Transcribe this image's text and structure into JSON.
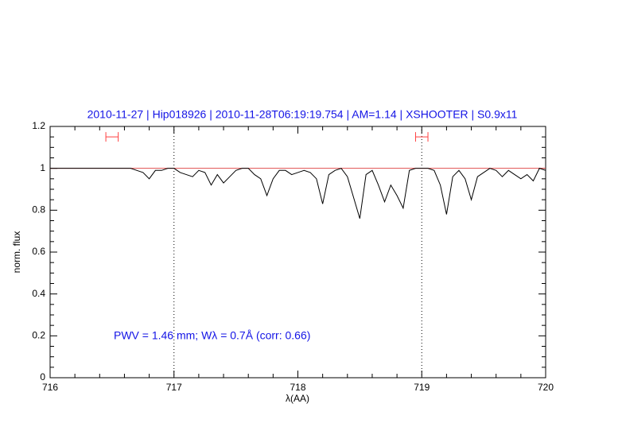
{
  "chart_data": {
    "type": "line",
    "title": "2010-11-27 | Hip018926 | 2010-11-28T06:19:19.754 | AM=1.14 | XSHOOTER | S0.9x11",
    "xlabel": "λ(AA)",
    "ylabel": "norm. flux",
    "annotation": "PWV = 1.46 mm; Wλ = 0.7Å (corr: 0.66)",
    "color": "#000000",
    "x": [
      716.0,
      716.05,
      716.1,
      716.15,
      716.2,
      716.25,
      716.3,
      716.35,
      716.4,
      716.45,
      716.5,
      716.55,
      716.6,
      716.65,
      716.7,
      716.75,
      716.8,
      716.85,
      716.9,
      716.95,
      717.0,
      717.05,
      717.1,
      717.15,
      717.2,
      717.25,
      717.3,
      717.35,
      717.4,
      717.45,
      717.5,
      717.55,
      717.6,
      717.65,
      717.7,
      717.75,
      717.8,
      717.85,
      717.9,
      717.95,
      718.0,
      718.05,
      718.1,
      718.15,
      718.2,
      718.25,
      718.3,
      718.35,
      718.4,
      718.45,
      718.5,
      718.55,
      718.6,
      718.65,
      718.7,
      718.75,
      718.8,
      718.85,
      718.9,
      718.95,
      719.0,
      719.05,
      719.1,
      719.15,
      719.2,
      719.25,
      719.3,
      719.35,
      719.4,
      719.45,
      719.5,
      719.55,
      719.6,
      719.65,
      719.7,
      719.75,
      719.8,
      719.85,
      719.9,
      719.95,
      720.0
    ],
    "values": [
      1.0,
      1.0,
      1.0,
      1.0,
      1.0,
      1.0,
      1.0,
      1.0,
      1.0,
      1.0,
      1.0,
      1.0,
      1.0,
      1.0,
      0.99,
      0.98,
      0.95,
      0.99,
      0.99,
      1.0,
      1.0,
      0.98,
      0.97,
      0.96,
      0.99,
      0.98,
      0.92,
      0.97,
      0.93,
      0.96,
      0.99,
      1.0,
      1.0,
      0.97,
      0.95,
      0.87,
      0.95,
      0.99,
      0.99,
      0.97,
      0.98,
      0.99,
      0.98,
      0.95,
      0.83,
      0.97,
      0.99,
      1.0,
      0.96,
      0.86,
      0.76,
      0.97,
      0.99,
      0.92,
      0.84,
      0.92,
      0.87,
      0.81,
      0.99,
      1.0,
      1.0,
      1.0,
      0.99,
      0.92,
      0.78,
      0.96,
      0.99,
      0.95,
      0.85,
      0.96,
      0.98,
      1.0,
      0.99,
      0.96,
      0.99,
      0.97,
      0.95,
      0.97,
      0.94,
      1.0,
      0.99
    ],
    "continuum": {
      "value": 1.0,
      "color": "#e05050"
    },
    "markers": {
      "color": "#ff4040",
      "y": 1.15,
      "ranges": [
        [
          716.45,
          716.55
        ],
        [
          718.95,
          719.05
        ]
      ]
    },
    "vlines": [
      717,
      719
    ],
    "xlim": [
      716,
      720
    ],
    "ylim": [
      0,
      1.2
    ],
    "xticks": [
      716,
      717,
      718,
      719,
      720
    ],
    "yticks": [
      0,
      0.2,
      0.4,
      0.6,
      0.8,
      1,
      1.2
    ],
    "xminorticks": [
      716.2,
      716.4,
      716.6,
      716.8,
      717.2,
      717.4,
      717.6,
      717.8,
      718.2,
      718.4,
      718.6,
      718.8,
      719.2,
      719.4,
      719.6,
      719.8
    ],
    "yminorticks": [
      0.05,
      0.1,
      0.15,
      0.25,
      0.3,
      0.35,
      0.45,
      0.5,
      0.55,
      0.65,
      0.7,
      0.75,
      0.85,
      0.9,
      0.95,
      1.05,
      1.1,
      1.15
    ]
  }
}
